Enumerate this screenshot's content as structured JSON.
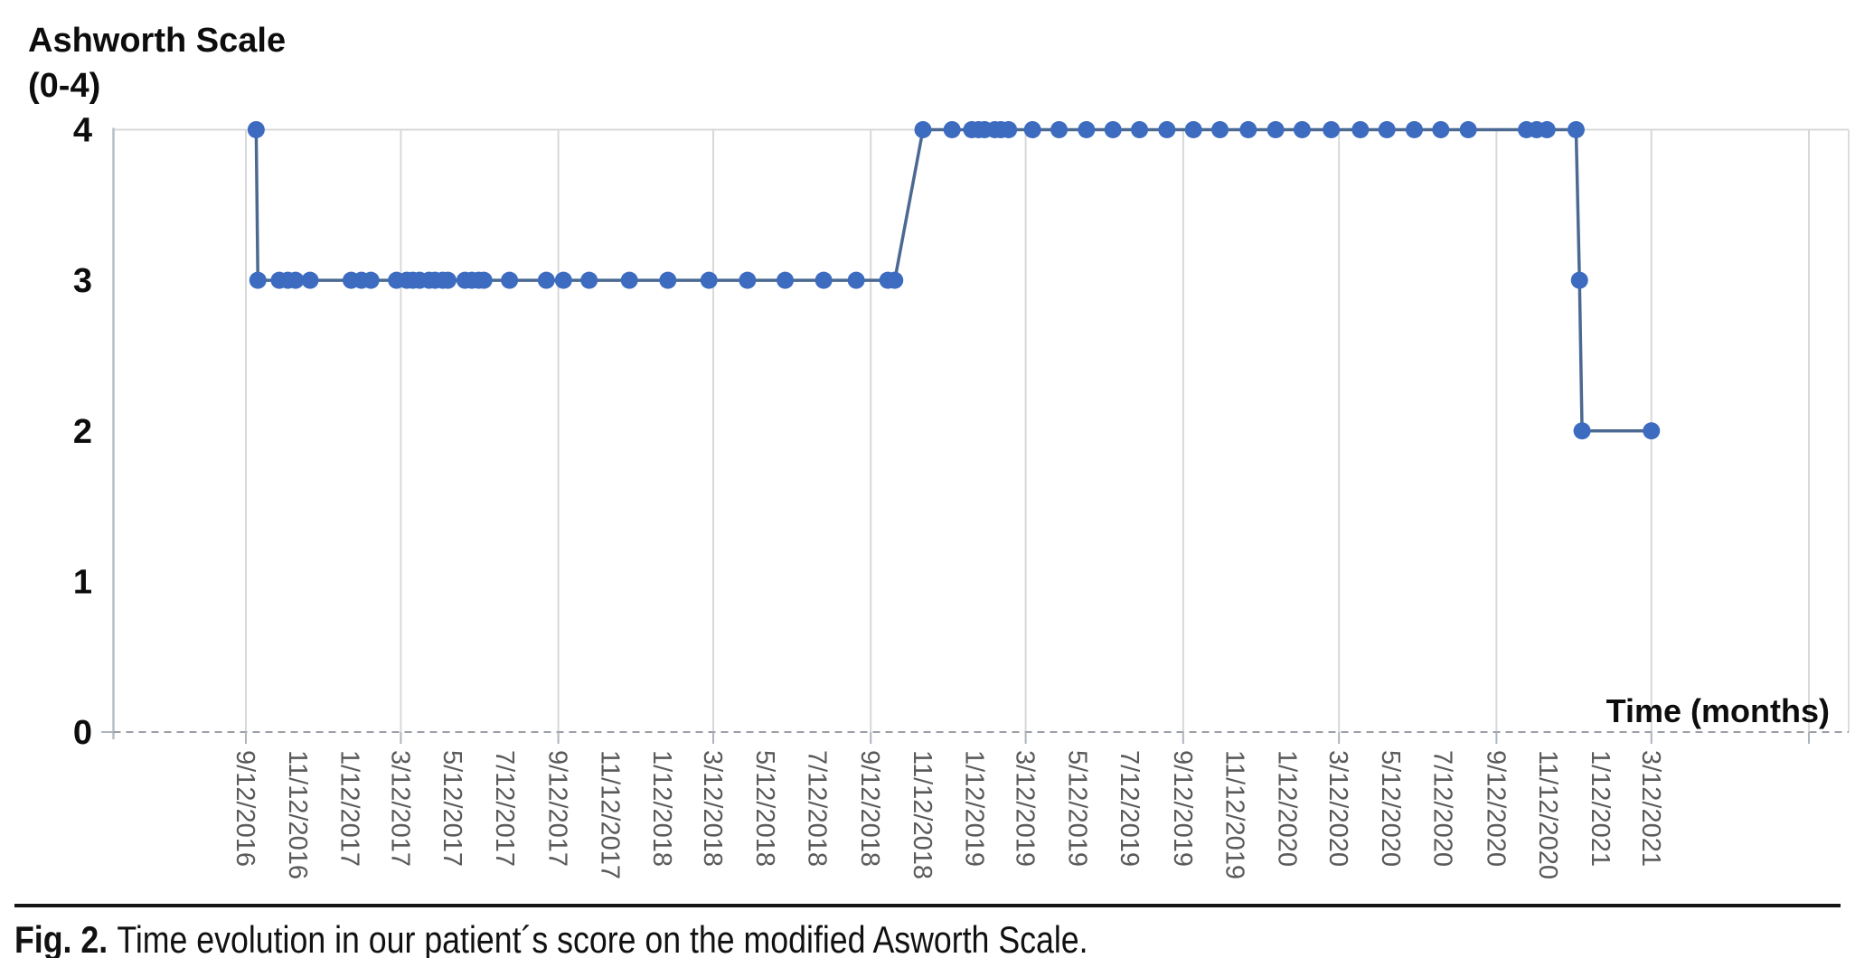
{
  "figure": {
    "y_axis_title_line1": "Ashworth Scale",
    "y_axis_title_line2": "(0-4)",
    "x_axis_title": "Time (months)"
  },
  "caption": {
    "label": "Fig. 2.",
    "text": "Time evolution in our patient´s score on the modified Asworth Scale."
  },
  "chart_data": {
    "type": "line",
    "title": "Ashworth Scale (0-4)",
    "xlabel": "Time (months)",
    "ylabel": "Ashworth Scale (0-4)",
    "legend": "none",
    "grid": "vertical gridlines every 6 months; top border at y=4; dashed baseline at y=0",
    "marker_color": "#3d6bc0",
    "line_color": "#4b6991",
    "gridline_color": "#d8d8d8",
    "axis_color": "#b6bdc6",
    "x_label_color": "#5a5a5a",
    "x_axis": {
      "type": "date",
      "min": "9/12/2016",
      "max": "9/12/2021",
      "tick_labels": [
        "9/12/2016",
        "11/12/2016",
        "1/12/2017",
        "3/12/2017",
        "5/12/2017",
        "7/12/2017",
        "9/12/2017",
        "11/12/2017",
        "1/12/2018",
        "3/12/2018",
        "5/12/2018",
        "7/12/2018",
        "9/12/2018",
        "11/12/2018",
        "1/12/2019",
        "3/12/2019",
        "5/12/2019",
        "7/12/2019",
        "9/12/2019",
        "11/12/2019",
        "1/12/2020",
        "3/12/2020",
        "5/12/2020",
        "7/12/2020",
        "9/12/2020",
        "11/12/2020",
        "1/12/2021",
        "3/12/2021"
      ],
      "gridline_dates": [
        "9/12/2016",
        "3/12/2017",
        "9/12/2017",
        "3/12/2018",
        "9/12/2018",
        "3/12/2019",
        "9/12/2019",
        "3/12/2020",
        "9/12/2020",
        "3/12/2021",
        "9/12/2021"
      ]
    },
    "y_axis": {
      "min": 0,
      "max": 4,
      "ticks": [
        4,
        3,
        2,
        1,
        0
      ]
    },
    "series": [
      {
        "name": "Modified Ashworth Scale score",
        "points": [
          [
            "9/24/2016",
            4
          ],
          [
            "9/26/2016",
            3
          ],
          [
            "10/21/2016",
            3
          ],
          [
            "10/31/2016",
            3
          ],
          [
            "11/9/2016",
            3
          ],
          [
            "11/26/2016",
            3
          ],
          [
            "1/13/2017",
            3
          ],
          [
            "1/25/2017",
            3
          ],
          [
            "2/5/2017",
            3
          ],
          [
            "3/7/2017",
            3
          ],
          [
            "3/19/2017",
            3
          ],
          [
            "3/26/2017",
            3
          ],
          [
            "4/3/2017",
            3
          ],
          [
            "4/14/2017",
            3
          ],
          [
            "4/21/2017",
            3
          ],
          [
            "4/30/2017",
            3
          ],
          [
            "5/6/2017",
            3
          ],
          [
            "5/26/2017",
            3
          ],
          [
            "6/3/2017",
            3
          ],
          [
            "6/11/2017",
            3
          ],
          [
            "6/17/2017",
            3
          ],
          [
            "7/17/2017",
            3
          ],
          [
            "8/29/2017",
            3
          ],
          [
            "9/18/2017",
            3
          ],
          [
            "10/18/2017",
            3
          ],
          [
            "12/4/2017",
            3
          ],
          [
            "1/18/2018",
            3
          ],
          [
            "3/7/2018",
            3
          ],
          [
            "4/21/2018",
            3
          ],
          [
            "6/4/2018",
            3
          ],
          [
            "7/19/2018",
            3
          ],
          [
            "8/26/2018",
            3
          ],
          [
            "10/2/2018",
            3
          ],
          [
            "10/10/2018",
            3
          ],
          [
            "11/12/2018",
            4
          ],
          [
            "12/16/2018",
            4
          ],
          [
            "1/8/2019",
            4
          ],
          [
            "1/16/2019",
            4
          ],
          [
            "1/23/2019",
            4
          ],
          [
            "2/4/2019",
            4
          ],
          [
            "2/11/2019",
            4
          ],
          [
            "2/20/2019",
            4
          ],
          [
            "3/20/2019",
            4
          ],
          [
            "4/20/2019",
            4
          ],
          [
            "5/22/2019",
            4
          ],
          [
            "6/22/2019",
            4
          ],
          [
            "7/23/2019",
            4
          ],
          [
            "8/24/2019",
            4
          ],
          [
            "9/24/2019",
            4
          ],
          [
            "10/25/2019",
            4
          ],
          [
            "11/27/2019",
            4
          ],
          [
            "12/29/2019",
            4
          ],
          [
            "1/29/2020",
            4
          ],
          [
            "3/3/2020",
            4
          ],
          [
            "4/6/2020",
            4
          ],
          [
            "5/7/2020",
            4
          ],
          [
            "6/8/2020",
            4
          ],
          [
            "7/9/2020",
            4
          ],
          [
            "8/10/2020",
            4
          ],
          [
            "10/17/2020",
            4
          ],
          [
            "10/29/2020",
            4
          ],
          [
            "11/10/2020",
            4
          ],
          [
            "12/14/2020",
            4
          ],
          [
            "12/18/2020",
            3
          ],
          [
            "12/21/2020",
            2
          ],
          [
            "3/12/2021",
            2
          ]
        ]
      }
    ]
  }
}
